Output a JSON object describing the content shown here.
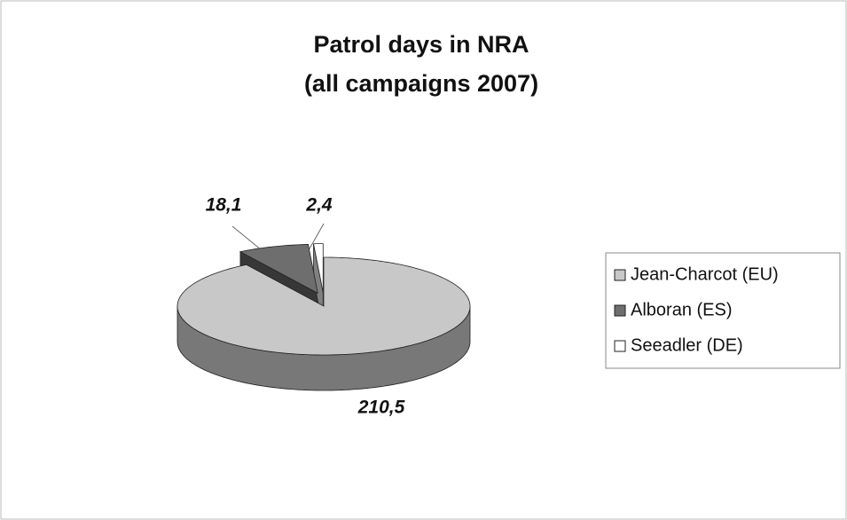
{
  "chart_data": {
    "type": "pie",
    "title": "Patrol days in NRA",
    "subtitle": "(all campaigns 2007)",
    "categories": [
      "Jean-Charcot (EU)",
      "Alboran (ES)",
      "Seeadler (DE)"
    ],
    "values": [
      210.5,
      18.1,
      2.4
    ],
    "value_labels": [
      "210,5",
      "18,1",
      "2,4"
    ],
    "colors": [
      "#c8c8c8",
      "#6e6e6e",
      "#ffffff"
    ],
    "legend": "right"
  }
}
